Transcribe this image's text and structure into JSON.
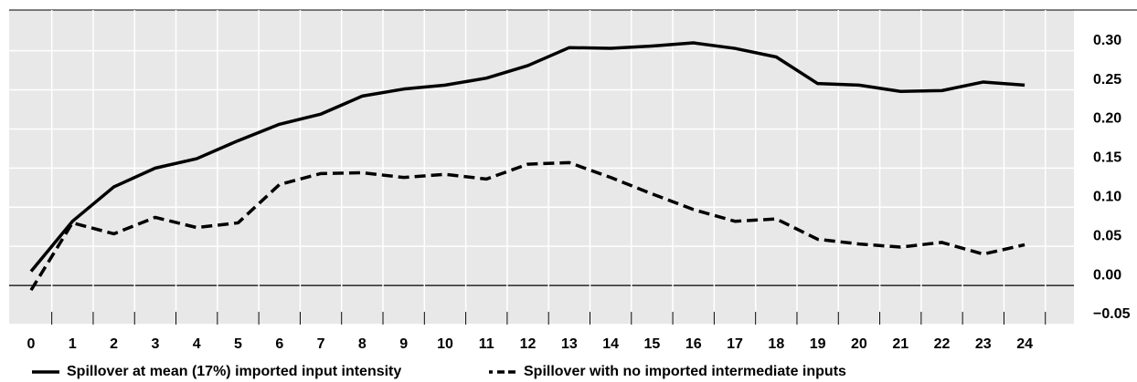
{
  "chart_data": {
    "type": "line",
    "x": [
      0,
      1,
      2,
      3,
      4,
      5,
      6,
      7,
      8,
      9,
      10,
      11,
      12,
      13,
      14,
      15,
      16,
      17,
      18,
      19,
      20,
      21,
      22,
      23,
      24
    ],
    "xlim": [
      -0.53,
      25.19
    ],
    "xticks": [
      0,
      1,
      2,
      3,
      4,
      5,
      6,
      7,
      8,
      9,
      10,
      11,
      12,
      13,
      14,
      15,
      16,
      17,
      18,
      19,
      20,
      21,
      22,
      23,
      24
    ],
    "ylim": [
      -0.05,
      0.352
    ],
    "yticks": [
      {
        "value": -0.05,
        "label": "−0.05"
      },
      {
        "value": 0,
        "label": "0.00"
      },
      {
        "value": 0.05,
        "label": "0.05"
      },
      {
        "value": 0.1,
        "label": "0.10"
      },
      {
        "value": 0.15,
        "label": "0.15"
      },
      {
        "value": 0.2,
        "label": "0.20"
      },
      {
        "value": 0.25,
        "label": "0.25"
      },
      {
        "value": 0.3,
        "label": "0.30"
      }
    ],
    "grid": true,
    "series": [
      {
        "name": "Spillover at mean (17%) imported input intensity",
        "color": "#000000",
        "dash": "solid",
        "values": [
          0.018,
          0.082,
          0.126,
          0.15,
          0.162,
          0.185,
          0.206,
          0.219,
          0.242,
          0.251,
          0.256,
          0.265,
          0.281,
          0.304,
          0.303,
          0.306,
          0.31,
          0.303,
          0.292,
          0.258,
          0.256,
          0.248,
          0.249,
          0.26,
          0.256
        ]
      },
      {
        "name": "Spillover with no imported intermediate inputs",
        "color": "#000000",
        "dash": "dashed",
        "values": [
          -0.006,
          0.08,
          0.066,
          0.087,
          0.074,
          0.08,
          0.129,
          0.143,
          0.144,
          0.138,
          0.142,
          0.136,
          0.155,
          0.157,
          0.138,
          0.117,
          0.097,
          0.082,
          0.085,
          0.059,
          0.053,
          0.049,
          0.055,
          0.04,
          0.052
        ]
      }
    ]
  }
}
